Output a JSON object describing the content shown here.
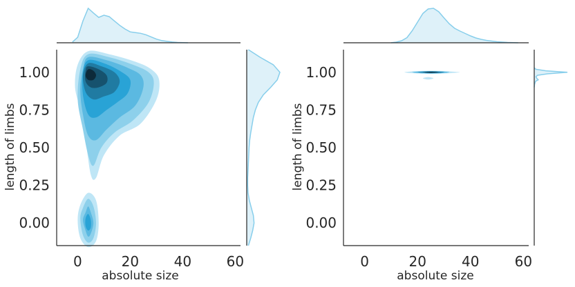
{
  "chart_data": [
    {
      "type": "kde-joint",
      "panel": "left",
      "xlabel": "absolute size",
      "ylabel": "length of limbs",
      "xlim": [
        -8,
        62
      ],
      "ylim": [
        -0.15,
        1.15
      ],
      "xticks": [
        0,
        20,
        40,
        60
      ],
      "yticks": [
        0.0,
        0.25,
        0.5,
        0.75,
        1.0
      ],
      "xtick_labels": [
        "0",
        "20",
        "40",
        "60"
      ],
      "ytick_labels": [
        "0.00",
        "0.25",
        "0.50",
        "0.75",
        "1.00"
      ],
      "grid": false,
      "color": "#87CEEB",
      "dark_color": "#0d2a3a",
      "contours": [
        {
          "level": 1,
          "points": [
            [
              4,
              1.14
            ],
            [
              12,
              1.12
            ],
            [
              22,
              1.07
            ],
            [
              28,
              1.02
            ],
            [
              31,
              0.95
            ],
            [
              30,
              0.82
            ],
            [
              24,
              0.66
            ],
            [
              16,
              0.58
            ],
            [
              10,
              0.45
            ],
            [
              7,
              0.3
            ],
            [
              5,
              0.32
            ],
            [
              3,
              0.55
            ],
            [
              1,
              0.75
            ],
            [
              -1,
              0.9
            ],
            [
              0,
              1.05
            ]
          ]
        },
        {
          "level": 2,
          "points": [
            [
              4,
              1.12
            ],
            [
              12,
              1.1
            ],
            [
              21,
              1.05
            ],
            [
              27,
              1.0
            ],
            [
              29,
              0.93
            ],
            [
              27,
              0.8
            ],
            [
              21,
              0.68
            ],
            [
              14,
              0.6
            ],
            [
              9,
              0.5
            ],
            [
              6,
              0.38
            ],
            [
              4,
              0.45
            ],
            [
              2,
              0.62
            ],
            [
              0,
              0.82
            ],
            [
              1,
              1.02
            ]
          ]
        },
        {
          "level": 3,
          "points": [
            [
              4,
              1.1
            ],
            [
              11,
              1.08
            ],
            [
              19,
              1.03
            ],
            [
              24,
              0.98
            ],
            [
              25,
              0.9
            ],
            [
              22,
              0.78
            ],
            [
              16,
              0.7
            ],
            [
              11,
              0.62
            ],
            [
              7,
              0.55
            ],
            [
              4,
              0.58
            ],
            [
              2,
              0.72
            ],
            [
              1,
              0.88
            ],
            [
              2,
              1.02
            ]
          ]
        },
        {
          "level": 4,
          "points": [
            [
              4,
              1.08
            ],
            [
              10,
              1.06
            ],
            [
              16,
              1.01
            ],
            [
              20,
              0.95
            ],
            [
              19,
              0.86
            ],
            [
              15,
              0.8
            ],
            [
              11,
              0.75
            ],
            [
              7,
              0.7
            ],
            [
              4,
              0.72
            ],
            [
              2,
              0.85
            ],
            [
              2,
              1.0
            ]
          ]
        },
        {
          "level": 5,
          "points": [
            [
              4,
              1.06
            ],
            [
              9,
              1.04
            ],
            [
              14,
              1.0
            ],
            [
              16,
              0.94
            ],
            [
              14,
              0.87
            ],
            [
              10,
              0.84
            ],
            [
              6,
              0.82
            ],
            [
              3,
              0.87
            ],
            [
              2,
              0.98
            ]
          ]
        },
        {
          "level": 6,
          "points": [
            [
              4,
              1.04
            ],
            [
              8,
              1.02
            ],
            [
              11,
              0.98
            ],
            [
              11,
              0.93
            ],
            [
              8,
              0.9
            ],
            [
              5,
              0.9
            ],
            [
              3,
              0.94
            ],
            [
              3,
              1.01
            ]
          ]
        },
        {
          "level": 7,
          "points": [
            [
              4,
              1.02
            ],
            [
              6,
              1.01
            ],
            [
              7,
              0.98
            ],
            [
              6,
              0.95
            ],
            [
              4,
              0.95
            ],
            [
              3,
              0.98
            ]
          ]
        },
        {
          "level": 1,
          "points": [
            [
              4,
              0.2
            ],
            [
              7,
              0.15
            ],
            [
              8,
              0.0
            ],
            [
              7,
              -0.12
            ],
            [
              4,
              -0.16
            ],
            [
              1,
              -0.1
            ],
            [
              0,
              0.02
            ],
            [
              1,
              0.12
            ]
          ]
        },
        {
          "level": 2,
          "points": [
            [
              4,
              0.16
            ],
            [
              6,
              0.11
            ],
            [
              7,
              0.0
            ],
            [
              6,
              -0.1
            ],
            [
              4,
              -0.13
            ],
            [
              2,
              -0.08
            ],
            [
              1,
              0.03
            ],
            [
              2,
              0.1
            ]
          ]
        },
        {
          "level": 3,
          "points": [
            [
              4,
              0.11
            ],
            [
              5,
              0.07
            ],
            [
              6,
              0.0
            ],
            [
              5,
              -0.07
            ],
            [
              4,
              -0.09
            ],
            [
              3,
              -0.05
            ],
            [
              2,
              0.02
            ],
            [
              3,
              0.07
            ]
          ]
        },
        {
          "level": 4,
          "points": [
            [
              4,
              0.06
            ],
            [
              5,
              0.02
            ],
            [
              5,
              -0.03
            ],
            [
              4,
              -0.05
            ],
            [
              3,
              -0.02
            ],
            [
              3,
              0.03
            ]
          ]
        }
      ],
      "marginal_x": {
        "x": [
          -2,
          0,
          2,
          4,
          6,
          8,
          10,
          12,
          14,
          16,
          18,
          20,
          22,
          24,
          26,
          28,
          30,
          32,
          34,
          36,
          38,
          40,
          42
        ],
        "y": [
          0.02,
          0.15,
          0.6,
          0.95,
          0.82,
          0.7,
          0.76,
          0.72,
          0.6,
          0.48,
          0.38,
          0.3,
          0.28,
          0.26,
          0.22,
          0.16,
          0.1,
          0.06,
          0.04,
          0.02,
          0.01,
          0.005,
          0.0
        ]
      },
      "marginal_y": {
        "y": [
          -0.15,
          -0.1,
          -0.05,
          0.0,
          0.05,
          0.1,
          0.15,
          0.2,
          0.25,
          0.3,
          0.35,
          0.4,
          0.45,
          0.5,
          0.55,
          0.6,
          0.65,
          0.7,
          0.75,
          0.8,
          0.85,
          0.9,
          0.95,
          1.0,
          1.05,
          1.1,
          1.15
        ],
        "x": [
          0.05,
          0.12,
          0.18,
          0.22,
          0.2,
          0.14,
          0.08,
          0.04,
          0.03,
          0.03,
          0.04,
          0.05,
          0.06,
          0.07,
          0.09,
          0.12,
          0.16,
          0.2,
          0.26,
          0.35,
          0.5,
          0.72,
          0.92,
          1.0,
          0.8,
          0.4,
          0.05
        ]
      }
    },
    {
      "type": "kde-joint",
      "panel": "right",
      "xlabel": "absolute size",
      "ylabel": "length of limbs",
      "xlim": [
        -8,
        62
      ],
      "ylim": [
        -0.15,
        1.15
      ],
      "xticks": [
        0,
        20,
        40,
        60
      ],
      "yticks": [
        0.0,
        0.25,
        0.5,
        0.75,
        1.0
      ],
      "xtick_labels": [
        "0",
        "20",
        "40",
        "60"
      ],
      "ytick_labels": [
        "0.00",
        "0.25",
        "0.50",
        "0.75",
        "1.00"
      ],
      "grid": false,
      "color": "#87CEEB",
      "dark_color": "#0d2a3a",
      "contours": [
        {
          "level": 1,
          "points": [
            [
              15,
              1.0
            ],
            [
              17,
              1.005
            ],
            [
              20,
              1.008
            ],
            [
              25,
              1.01
            ],
            [
              30,
              1.008
            ],
            [
              33,
              1.005
            ],
            [
              36,
              1.0
            ],
            [
              33,
              0.995
            ],
            [
              30,
              0.992
            ],
            [
              25,
              0.99
            ],
            [
              20,
              0.992
            ],
            [
              17,
              0.995
            ]
          ]
        },
        {
          "level": 3,
          "points": [
            [
              18,
              1.0
            ],
            [
              21,
              1.006
            ],
            [
              25,
              1.008
            ],
            [
              29,
              1.006
            ],
            [
              32,
              1.0
            ],
            [
              29,
              0.994
            ],
            [
              25,
              0.992
            ],
            [
              21,
              0.994
            ]
          ]
        },
        {
          "level": 5,
          "points": [
            [
              20,
              1.0
            ],
            [
              23,
              1.004
            ],
            [
              25,
              1.006
            ],
            [
              28,
              1.004
            ],
            [
              30,
              1.0
            ],
            [
              28,
              0.996
            ],
            [
              25,
              0.994
            ],
            [
              23,
              0.996
            ]
          ]
        },
        {
          "level": 7,
          "points": [
            [
              22,
              1.0
            ],
            [
              25,
              1.003
            ],
            [
              28,
              1.0
            ],
            [
              25,
              0.997
            ]
          ]
        },
        {
          "level": 1,
          "points": [
            [
              22,
              0.96
            ],
            [
              24,
              0.968
            ],
            [
              26,
              0.96
            ],
            [
              24,
              0.952
            ]
          ]
        }
      ],
      "marginal_x": {
        "x": [
          10,
          12,
          14,
          16,
          18,
          20,
          22,
          24,
          26,
          28,
          30,
          32,
          34,
          36,
          38,
          40,
          42,
          44,
          46,
          48,
          50,
          52,
          54,
          56,
          58
        ],
        "y": [
          0.0,
          0.02,
          0.06,
          0.15,
          0.35,
          0.6,
          0.85,
          0.98,
          1.0,
          0.9,
          0.72,
          0.55,
          0.42,
          0.34,
          0.27,
          0.2,
          0.14,
          0.1,
          0.07,
          0.05,
          0.03,
          0.02,
          0.01,
          0.005,
          0.0
        ]
      },
      "marginal_y": {
        "y": [
          0.9,
          0.92,
          0.94,
          0.95,
          0.96,
          0.97,
          0.98,
          0.99,
          1.0,
          1.01,
          1.02,
          1.03
        ],
        "x": [
          0.0,
          0.01,
          0.04,
          0.12,
          0.08,
          0.05,
          0.1,
          0.4,
          1.0,
          0.35,
          0.05,
          0.0
        ]
      }
    }
  ]
}
